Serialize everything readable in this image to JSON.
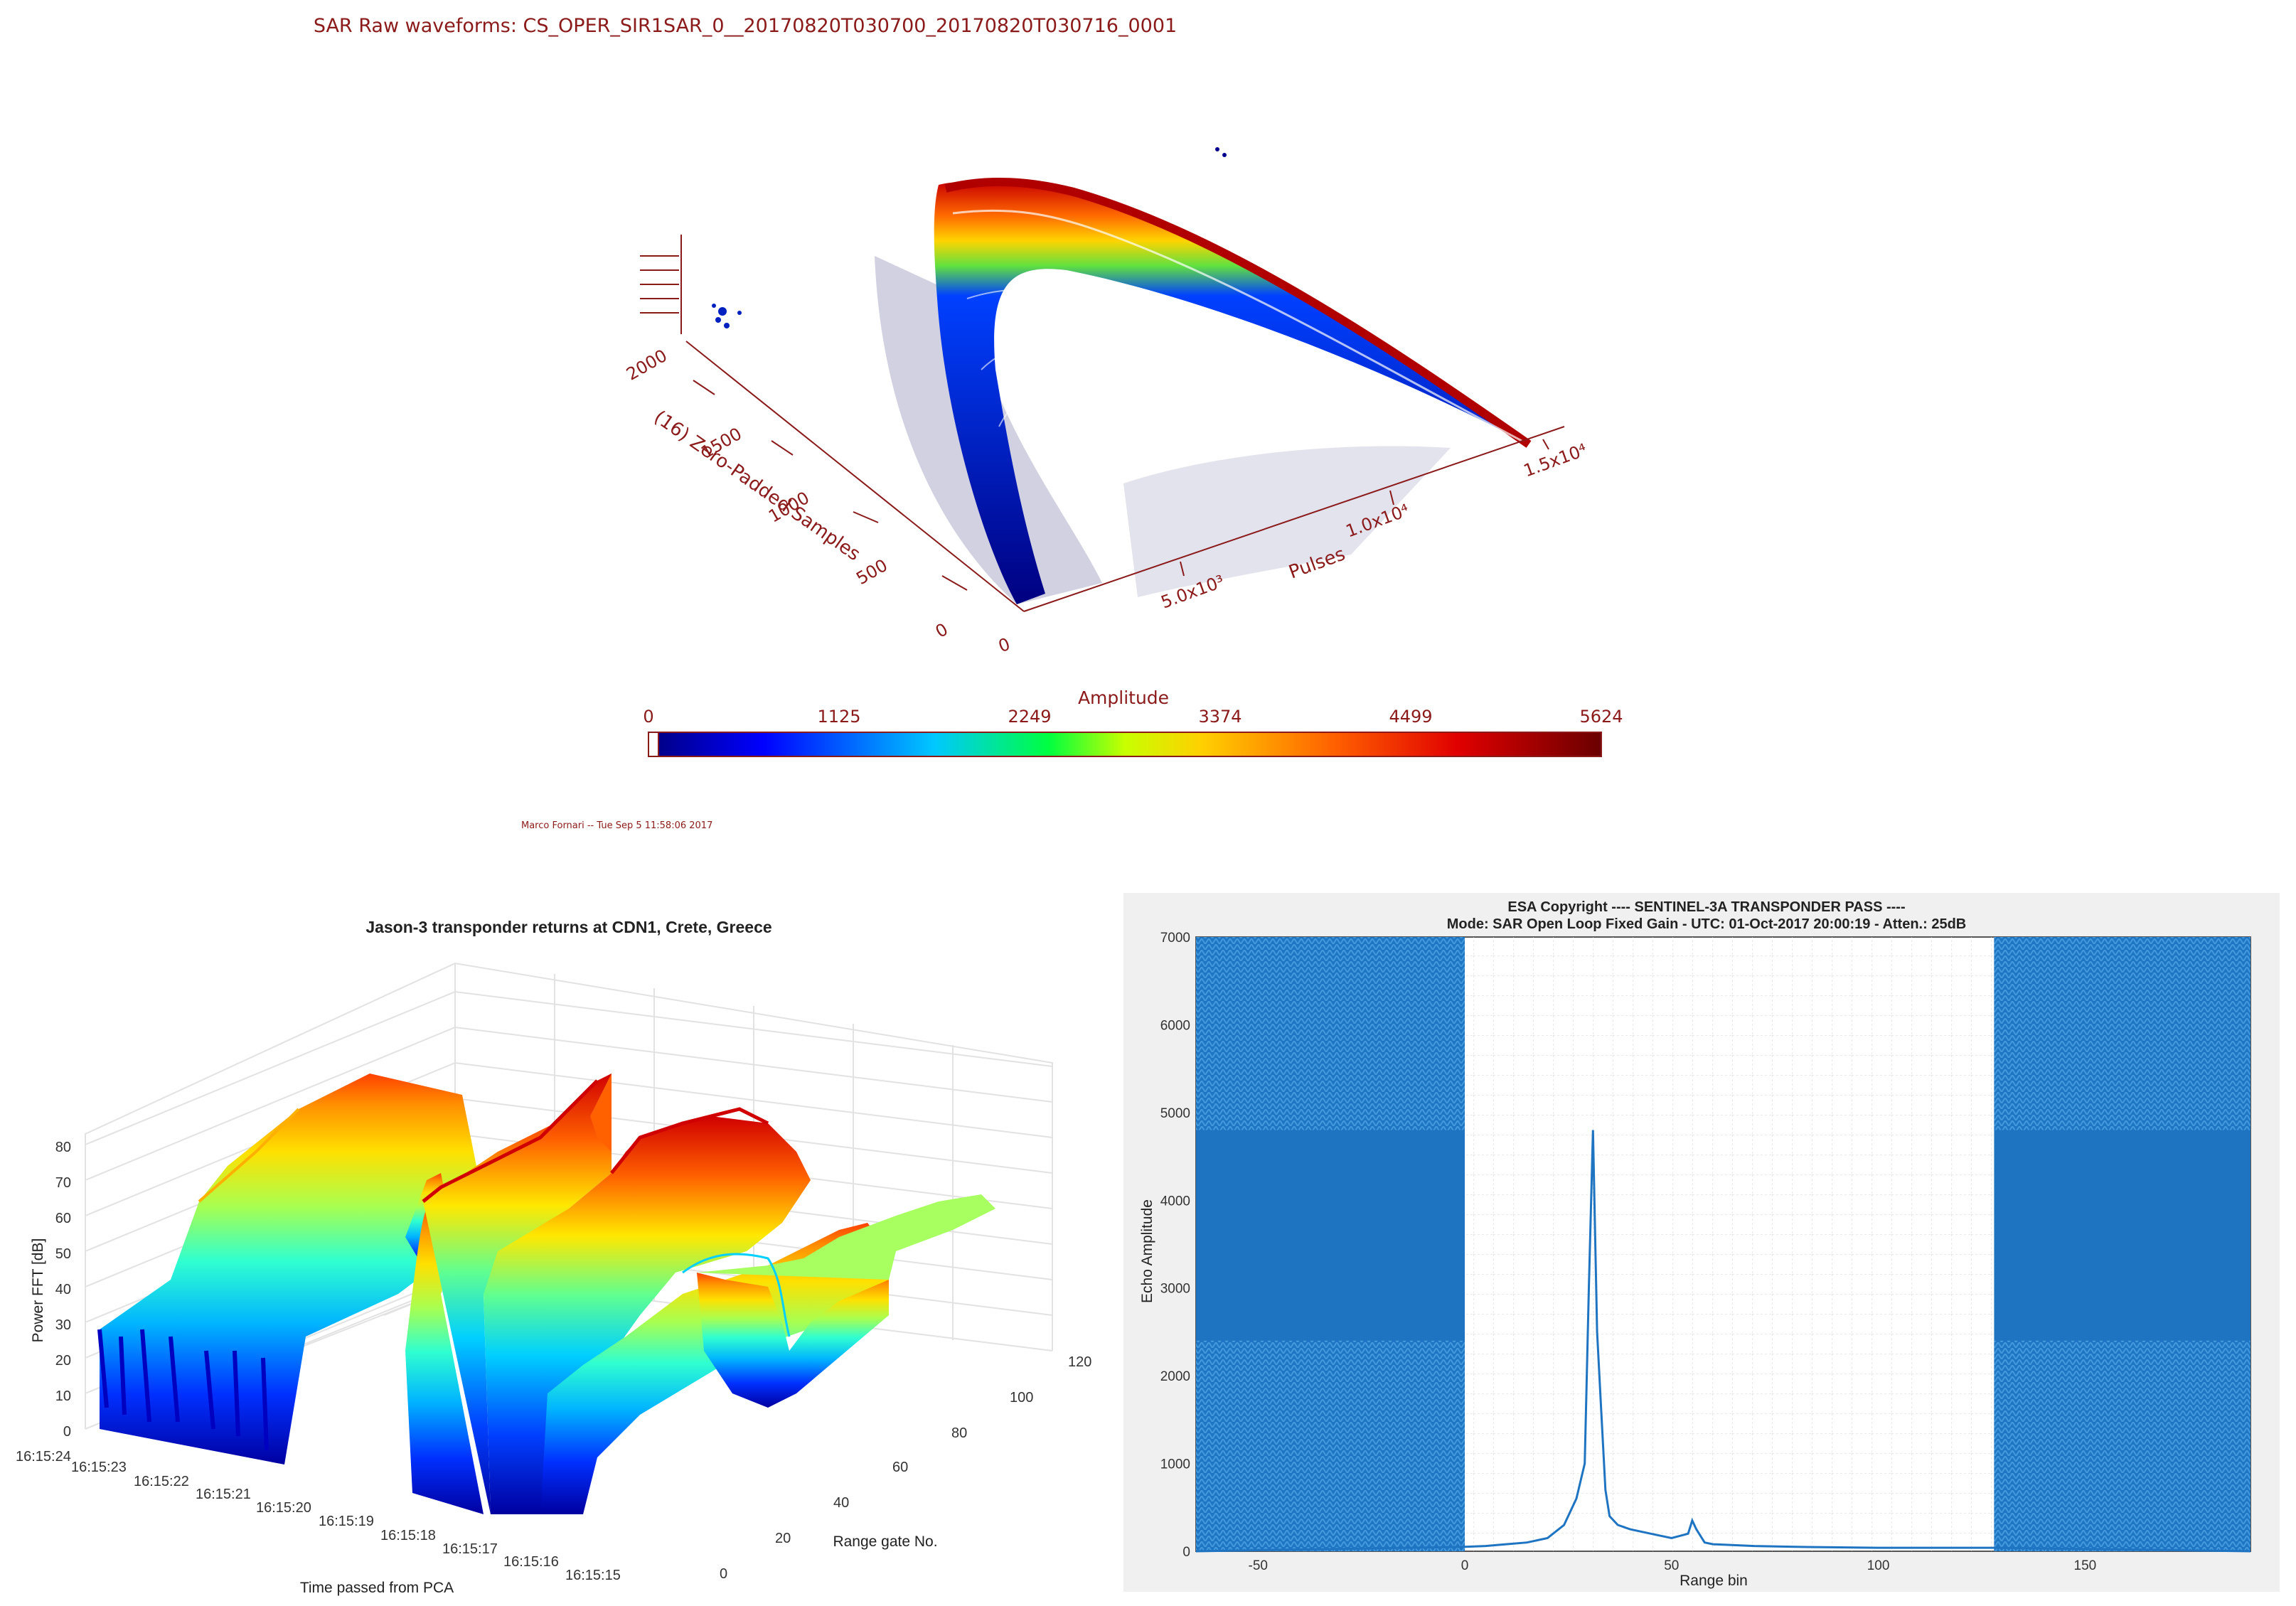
{
  "chart_data": [
    {
      "type": "scatter",
      "title": "SAR Raw waveforms: CS_OPER_SIR1SAR_0__20170820T030700_20170820T030716_0001",
      "ylabel": "(16) Zero-Padded Samples",
      "xlabel": "Pulses",
      "y_ticks": [
        "0",
        "500",
        "1000",
        "1500",
        "2000"
      ],
      "x_ticks": [
        "0",
        "5.0x10³",
        "1.0x10⁴",
        "1.5x10⁴"
      ],
      "colorbar": {
        "label": "Amplitude",
        "ticks": [
          "0",
          "1125",
          "2249",
          "3374",
          "4499",
          "5624"
        ],
        "range": [
          0,
          5624
        ]
      },
      "credit": "Marco Fornari -- Tue Sep  5 11:58:06 2017"
    },
    {
      "type": "area",
      "title": "Jason-3 transponder returns at CDN1, Crete, Greece",
      "zlabel": "Power FFT [dB]",
      "xlabel": "Time passed from PCA",
      "ylabel": "Range gate No.",
      "z_ticks": [
        "0",
        "10",
        "20",
        "30",
        "40",
        "50",
        "60",
        "70",
        "80"
      ],
      "time_ticks": [
        "16:15:24",
        "16:15:23",
        "16:15:22",
        "16:15:21",
        "16:15:20",
        "16:15:19",
        "16:15:18",
        "16:15:17",
        "16:15:16",
        "16:15:15"
      ],
      "gate_ticks": [
        "0",
        "20",
        "40",
        "60",
        "80",
        "100",
        "120"
      ]
    },
    {
      "type": "line",
      "title": "ESA Copyright  ---- SENTINEL-3A TRANSPONDER PASS ----",
      "subtitle": "Mode: SAR Open Loop Fixed Gain   -   UTC: 01-Oct-2017 20:00:19   -   Atten.: 25dB",
      "xlabel": "Range bin",
      "ylabel": "Echo Amplitude",
      "xlim": [
        -65,
        190
      ],
      "ylim": [
        0,
        7000
      ],
      "x_ticks": [
        "-50",
        "0",
        "50",
        "100",
        "150"
      ],
      "y_ticks": [
        "0",
        "1000",
        "2000",
        "3000",
        "4000",
        "5000",
        "6000",
        "7000"
      ],
      "x": [
        -65,
        0,
        5,
        10,
        15,
        20,
        24,
        27,
        29,
        30,
        31,
        32,
        33,
        34,
        35,
        37,
        40,
        45,
        50,
        54,
        55,
        56,
        58,
        60,
        70,
        80,
        100,
        110,
        120,
        128,
        190
      ],
      "y": [
        0,
        50,
        60,
        80,
        100,
        150,
        300,
        600,
        1000,
        3000,
        4800,
        2500,
        1600,
        700,
        400,
        300,
        250,
        200,
        150,
        200,
        350,
        250,
        100,
        80,
        60,
        50,
        40,
        40,
        40,
        40,
        0
      ],
      "fill_regions": [
        {
          "from": -65,
          "to": 0,
          "value": 7000
        },
        {
          "from": 128,
          "to": 190,
          "value": 7000
        }
      ]
    }
  ]
}
